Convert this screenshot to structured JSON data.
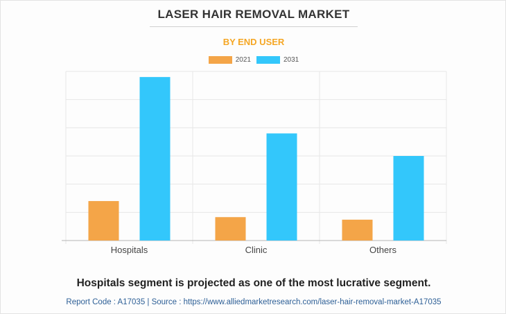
{
  "header": {
    "title": "LASER HAIR REMOVAL MARKET",
    "subtitle": "BY END USER"
  },
  "chart_data": {
    "type": "bar",
    "title": "LASER HAIR REMOVAL MARKET",
    "subtitle": "BY END USER",
    "categories": [
      "Hospitals",
      "Clinic",
      "Others"
    ],
    "series": [
      {
        "name": "2021",
        "values": [
          14,
          8.3,
          7.4
        ]
      },
      {
        "name": "2031",
        "values": [
          58,
          38,
          30
        ]
      }
    ],
    "xlabel": "",
    "ylabel": "",
    "ylim": [
      0,
      60
    ],
    "grid": true,
    "legend_position": "top-center"
  },
  "colors": {
    "series_2021": "#f4a548",
    "series_2031": "#33c7fb",
    "subtitle": "#f5a623",
    "grid": "#e6e6e6",
    "axis": "#b5b5b5"
  },
  "footer": {
    "caption": "Hospitals segment is projected as one of the most lucrative segment.",
    "source": "Report Code : A17035  |  Source : https://www.alliedmarketresearch.com/laser-hair-removal-market-A17035"
  }
}
